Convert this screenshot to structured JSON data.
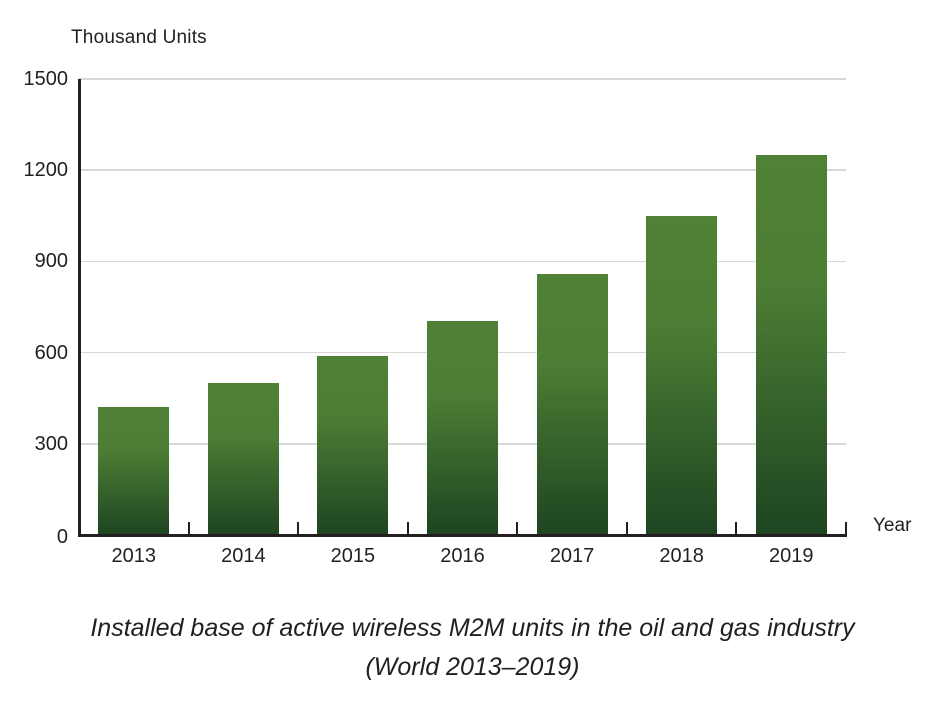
{
  "page": {
    "background_color": "#ffffff",
    "text_color": "#231f20"
  },
  "chart_data": {
    "type": "bar",
    "title": "",
    "y_axis_title": "Thousand Units",
    "x_axis_title": "Year",
    "categories": [
      "2013",
      "2014",
      "2015",
      "2016",
      "2017",
      "2018",
      "2019"
    ],
    "values": [
      420,
      500,
      590,
      705,
      860,
      1050,
      1250
    ],
    "ylim": [
      0,
      1500
    ],
    "y_ticks": [
      0,
      300,
      600,
      900,
      1200,
      1500
    ],
    "grid": "horizontal",
    "legend_position": "none",
    "bar_color_top": "#4f8136",
    "bar_color_mid": "#4c7d34",
    "bar_color_bottom": "#1d4521",
    "gridline_color": "#d8d8d8",
    "axis_color": "#231f20",
    "tick_color": "#231f20"
  },
  "caption": {
    "line1": "Installed base of active wireless M2M units in the oil and gas industry",
    "line2": "(World 2013–2019)"
  }
}
